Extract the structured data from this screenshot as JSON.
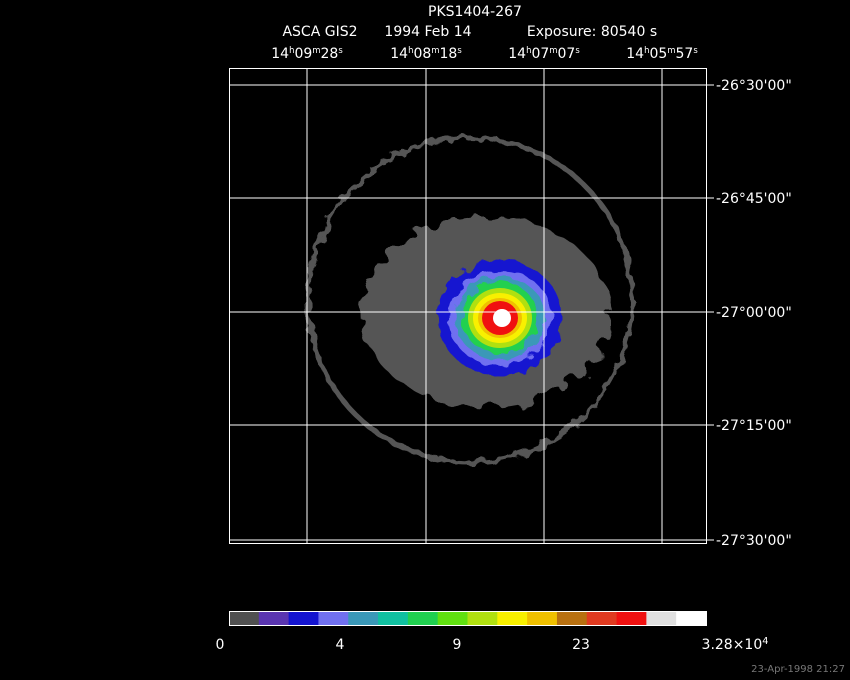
{
  "header": {
    "title": "PKS1404-267",
    "subtitle": [
      "ASCA GIS2",
      "1994 Feb 14",
      "Exposure: 80540 s"
    ]
  },
  "ra_labels": [
    [
      {
        "text": "14"
      },
      {
        "text": "h",
        "sup": true
      },
      {
        "text": "09"
      },
      {
        "text": "m",
        "sup": true
      },
      {
        "text": "28"
      },
      {
        "text": "s",
        "sup": true
      }
    ],
    [
      {
        "text": "14"
      },
      {
        "text": "h",
        "sup": true
      },
      {
        "text": "08"
      },
      {
        "text": "m",
        "sup": true
      },
      {
        "text": "18"
      },
      {
        "text": "s",
        "sup": true
      }
    ],
    [
      {
        "text": "14"
      },
      {
        "text": "h",
        "sup": true
      },
      {
        "text": "07"
      },
      {
        "text": "m",
        "sup": true
      },
      {
        "text": "07"
      },
      {
        "text": "s",
        "sup": true
      }
    ],
    [
      {
        "text": "14"
      },
      {
        "text": "h",
        "sup": true
      },
      {
        "text": "05"
      },
      {
        "text": "m",
        "sup": true
      },
      {
        "text": "57"
      },
      {
        "text": "s",
        "sup": true
      }
    ]
  ],
  "dec_labels": [
    "-26°30'00\"",
    "-26°45'00\"",
    "-27°00'00\"",
    "-27°15'00\"",
    "-27°30'00\""
  ],
  "colorbar": {
    "colors": [
      "#505050",
      "#5a35b0",
      "#1414d0",
      "#7070f0",
      "#3a98b8",
      "#10c0a0",
      "#20d050",
      "#60e010",
      "#b0e010",
      "#f8f000",
      "#f0c000",
      "#b87010",
      "#e03a20",
      "#f01010",
      "#e0e0e0",
      "#ffffff"
    ],
    "labels": [
      [
        {
          "text": "0"
        }
      ],
      [
        {
          "text": "4"
        }
      ],
      [
        {
          "text": "9"
        }
      ],
      [
        {
          "text": "23"
        }
      ],
      [
        {
          "text": "3.28×10"
        },
        {
          "text": "4",
          "sup": true
        }
      ]
    ]
  },
  "timestamp": "23-Apr-1998 21:27"
}
